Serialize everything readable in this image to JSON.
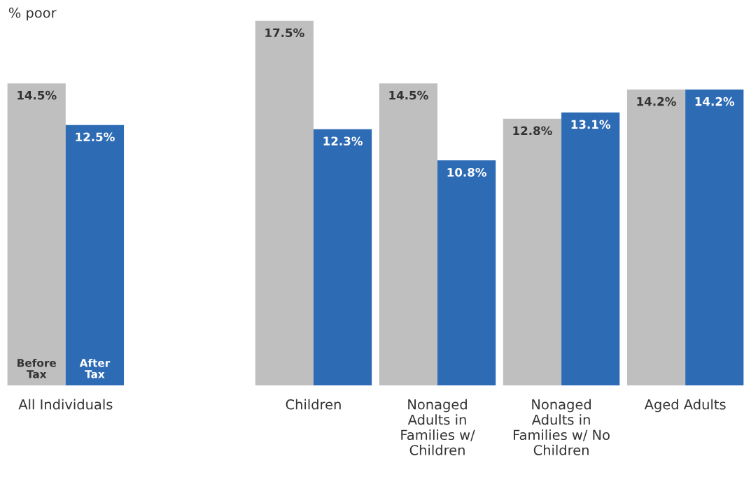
{
  "chart_data": {
    "type": "bar",
    "ylabel": "% poor",
    "categories": [
      "All Individuals",
      null,
      "Children",
      "Nonaged\nAdults in\nFamilies w/\nChildren",
      "Nonaged\nAdults in\nFamilies w/ No\nChildren",
      "Aged Adults"
    ],
    "series": [
      {
        "name": "Before\nTax",
        "color": "#bfbfbf",
        "values": [
          14.5,
          null,
          17.5,
          14.5,
          12.8,
          14.2
        ],
        "value_labels": [
          "14.5%",
          null,
          "17.5%",
          "14.5%",
          "12.8%",
          "14.2%"
        ]
      },
      {
        "name": "After\nTax",
        "color": "#2e6bb5",
        "values": [
          12.5,
          null,
          12.3,
          10.8,
          13.1,
          14.2
        ],
        "value_labels": [
          "12.5%",
          null,
          "12.3%",
          "10.8%",
          "13.1%",
          "14.2%"
        ]
      }
    ],
    "tick_labels": "x",
    "grid": false,
    "legend": false
  }
}
